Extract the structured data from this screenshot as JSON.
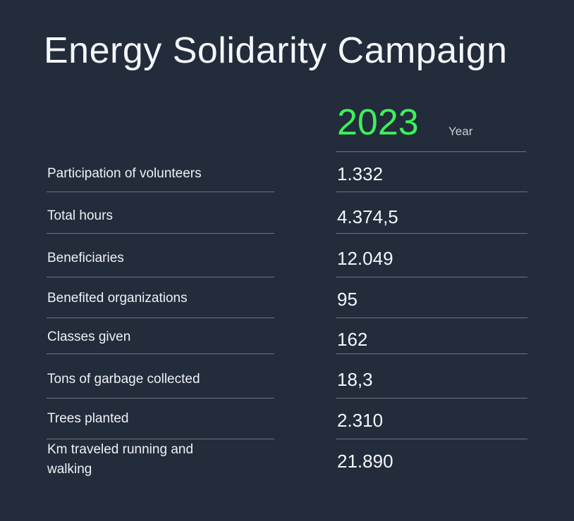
{
  "title": "Energy Solidarity Campaign",
  "year": {
    "value": "2023",
    "label": "Year"
  },
  "colors": {
    "background": "#222c3b",
    "accent": "#3df05b",
    "rule": "#6a7585"
  },
  "rows": [
    {
      "label": "Participation of volunteers",
      "value": "1.332"
    },
    {
      "label": "Total hours",
      "value": "4.374,5"
    },
    {
      "label": "Beneficiaries",
      "value": "12.049"
    },
    {
      "label": "Benefited organizations",
      "value": "95"
    },
    {
      "label": "Classes given",
      "value": "162"
    },
    {
      "label": "Tons of garbage collected",
      "value": "18,3"
    },
    {
      "label": "Trees planted",
      "value": "2.310"
    },
    {
      "label": "Km traveled running and walking",
      "value": "21.890"
    }
  ]
}
